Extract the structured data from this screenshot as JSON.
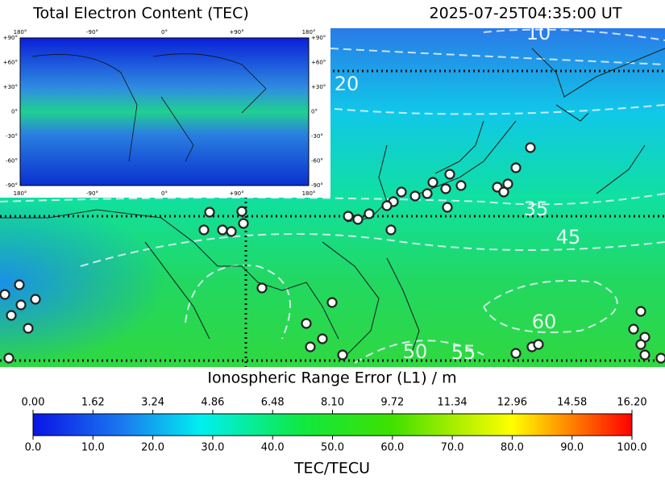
{
  "header": {
    "title": "Total Electron Content (TEC)",
    "timestamp": "2025-07-25T04:35:00 UT"
  },
  "map": {
    "contour_labels": [
      10,
      20,
      35,
      45,
      50,
      55,
      60
    ]
  },
  "inset": {
    "lon_labels": [
      "180°",
      "-90°",
      "0°",
      "+90°",
      "180°"
    ],
    "lat_labels": [
      "+90°",
      "+60°",
      "+30°",
      "0°",
      "-30°",
      "-60°",
      "-90°"
    ]
  },
  "colorbar": {
    "top_label": "Ionospheric Range Error (L1) / m",
    "top_lim": [
      0,
      16.2
    ],
    "top_ticks": [
      {
        "value": 0,
        "label": "0.00"
      },
      {
        "value": 1.62,
        "label": "1.62"
      },
      {
        "value": 3.24,
        "label": "3.24"
      },
      {
        "value": 4.86,
        "label": "4.86"
      },
      {
        "value": 6.48,
        "label": "6.48"
      },
      {
        "value": 8.1,
        "label": "8.10"
      },
      {
        "value": 9.72,
        "label": "9.72"
      },
      {
        "value": 11.34,
        "label": "11.34"
      },
      {
        "value": 12.96,
        "label": "12.96"
      },
      {
        "value": 14.58,
        "label": "14.58"
      },
      {
        "value": 16.2,
        "label": "16.20"
      }
    ],
    "lim": [
      0,
      100
    ],
    "ticks": [
      {
        "value": 0,
        "label": "0.0"
      },
      {
        "value": 10,
        "label": "10.0"
      },
      {
        "value": 20,
        "label": "20.0"
      },
      {
        "value": 30,
        "label": "30.0"
      },
      {
        "value": 40,
        "label": "40.0"
      },
      {
        "value": 50,
        "label": "50.0"
      },
      {
        "value": 60,
        "label": "60.0"
      },
      {
        "value": 70,
        "label": "70.0"
      },
      {
        "value": 80,
        "label": "80.0"
      },
      {
        "value": 90,
        "label": "90.0"
      },
      {
        "value": 100,
        "label": "100.0"
      }
    ],
    "label": "TEC/TECU",
    "colormap": [
      {
        "value": 0,
        "color": "#0a14e6"
      },
      {
        "value": 15,
        "color": "#1a7af0"
      },
      {
        "value": 28,
        "color": "#00f0f0"
      },
      {
        "value": 45,
        "color": "#10e840"
      },
      {
        "value": 60,
        "color": "#40e000"
      },
      {
        "value": 72,
        "color": "#b8f000"
      },
      {
        "value": 80,
        "color": "#ffff00"
      },
      {
        "value": 90,
        "color": "#ff8000"
      },
      {
        "value": 100,
        "color": "#ff0000"
      }
    ]
  }
}
